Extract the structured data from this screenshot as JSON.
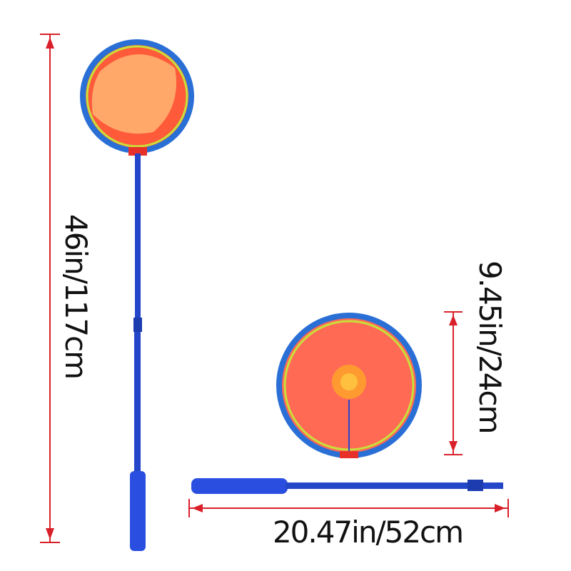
{
  "labels": {
    "total_length": "46in/117cm",
    "hoop_diameter": "9.45in/24cm",
    "handle_length": "20.47in/52cm"
  }
}
